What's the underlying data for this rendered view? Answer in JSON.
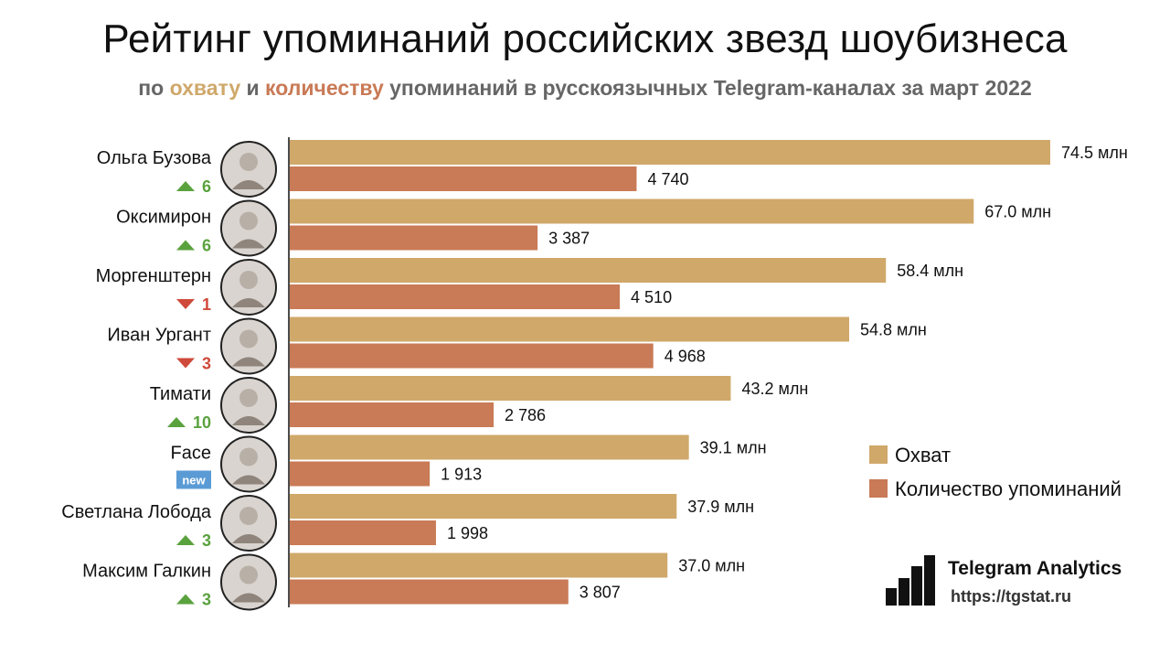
{
  "header": {
    "title": "Рейтинг упоминаний российских звезд шоубизнеса",
    "subtitle_parts": [
      "по ",
      "охвату",
      " и ",
      "количеству",
      " упоминаний в русскоязычных Telegram-каналах за март 2022"
    ]
  },
  "colors": {
    "reach": "#cfa86a",
    "count": "#c97a56",
    "up": "#5aa23e",
    "down": "#cf4a3a",
    "new_badge": "#5b9bd5"
  },
  "legend": {
    "reach": "Охват",
    "count": "Количество упоминаний"
  },
  "branding": {
    "name": "Telegram Analytics",
    "url": "https://tgstat.ru"
  },
  "chart_data": {
    "type": "bar",
    "orientation": "horizontal",
    "title": "Рейтинг упоминаний российских звезд шоубизнеса",
    "categories": [
      "Ольга Бузова",
      "Оксимирон",
      "Моргенштерн",
      "Иван Ургант",
      "Тимати",
      "Face",
      "Светлана Лобода",
      "Максим Галкин"
    ],
    "series": [
      {
        "name": "Охват",
        "values": [
          74.5,
          67.0,
          58.4,
          54.8,
          43.2,
          39.1,
          37.9,
          37.0
        ],
        "labels": [
          "74.5 млн",
          "67.0 млн",
          "58.4 млн",
          "54.8 млн",
          "43.2 млн",
          "39.1 млн",
          "37.9 млн",
          "37.0 млн"
        ],
        "max": 74.5
      },
      {
        "name": "Количество упоминаний",
        "values": [
          4740,
          3387,
          4510,
          4968,
          2786,
          1913,
          1998,
          3807
        ],
        "labels": [
          "4 740",
          "3 387",
          "4 510",
          "4 968",
          "2 786",
          "1 913",
          "1 998",
          "3 807"
        ],
        "max": 4968
      }
    ],
    "rank_changes": [
      {
        "dir": "up",
        "text": "6"
      },
      {
        "dir": "up",
        "text": "6"
      },
      {
        "dir": "down",
        "text": "1"
      },
      {
        "dir": "down",
        "text": "3"
      },
      {
        "dir": "up",
        "text": "10"
      },
      {
        "dir": "new",
        "text": "new"
      },
      {
        "dir": "up",
        "text": "3"
      },
      {
        "dir": "up",
        "text": "3"
      }
    ],
    "legend_position": "right"
  }
}
